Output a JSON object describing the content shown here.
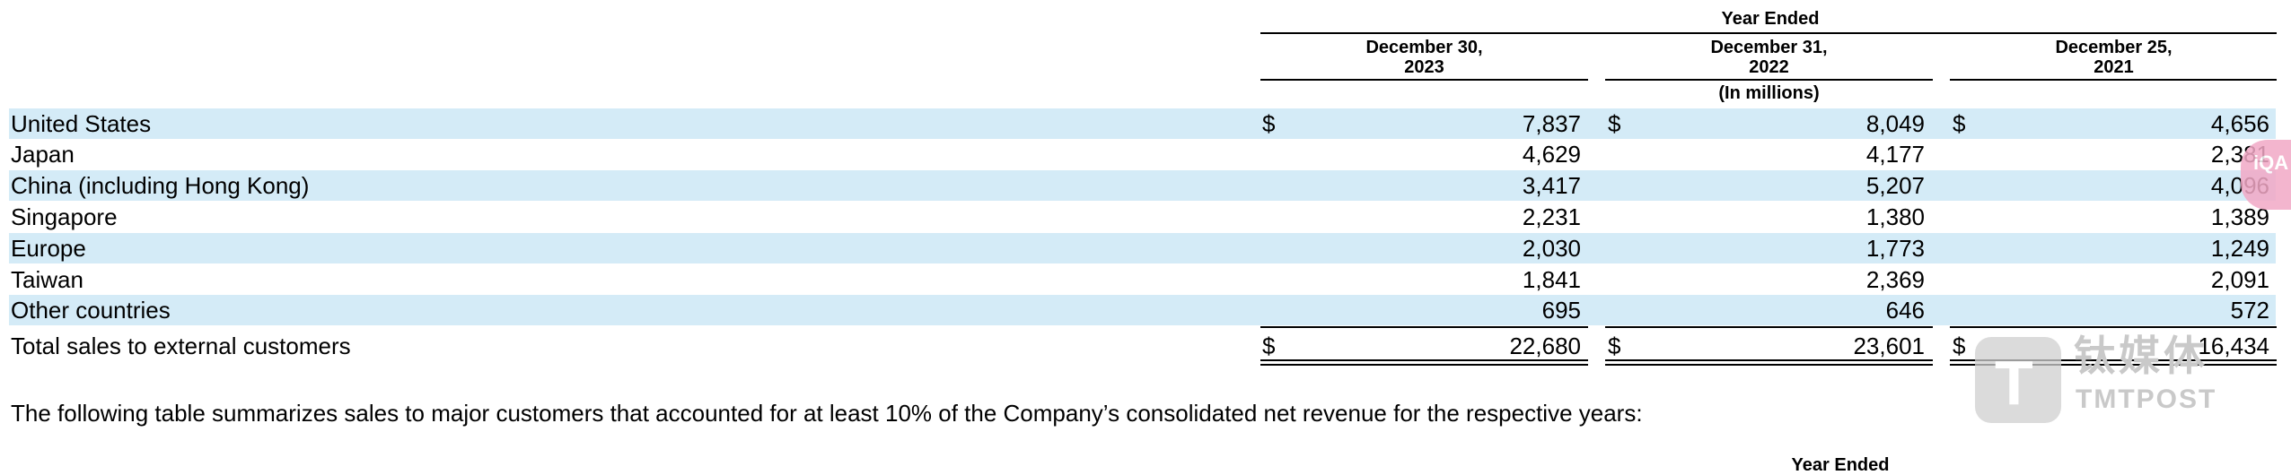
{
  "header": {
    "period": "Year Ended",
    "columns": [
      {
        "line1": "December 30,",
        "line2": "2023"
      },
      {
        "line1": "December 31,",
        "line2": "2022"
      },
      {
        "line1": "December 25,",
        "line2": "2021"
      }
    ],
    "units": "(In millions)"
  },
  "currency_symbol": "$",
  "rows": [
    {
      "label": "United States",
      "values": [
        "7,837",
        "8,049",
        "4,656"
      ]
    },
    {
      "label": "Japan",
      "values": [
        "4,629",
        "4,177",
        "2,381"
      ]
    },
    {
      "label": "China (including Hong Kong)",
      "values": [
        "3,417",
        "5,207",
        "4,096"
      ]
    },
    {
      "label": "Singapore",
      "values": [
        "2,231",
        "1,380",
        "1,389"
      ]
    },
    {
      "label": "Europe",
      "values": [
        "2,030",
        "1,773",
        "1,249"
      ]
    },
    {
      "label": "Taiwan",
      "values": [
        "1,841",
        "2,369",
        "2,091"
      ]
    },
    {
      "label": "Other countries",
      "values": [
        "695",
        "646",
        "572"
      ]
    }
  ],
  "total": {
    "label": "Total sales to external customers",
    "values": [
      "22,680",
      "23,601",
      "16,434"
    ]
  },
  "paragraph": "The following table summarizes sales to major customers that accounted for at least 10% of the Company’s consolidated net revenue for the respective years:",
  "next_table_header": "Year Ended",
  "watermark": {
    "cn": "钛媒体",
    "en": "TMTPOST",
    "letter": "T"
  },
  "badge_text": "iQA"
}
